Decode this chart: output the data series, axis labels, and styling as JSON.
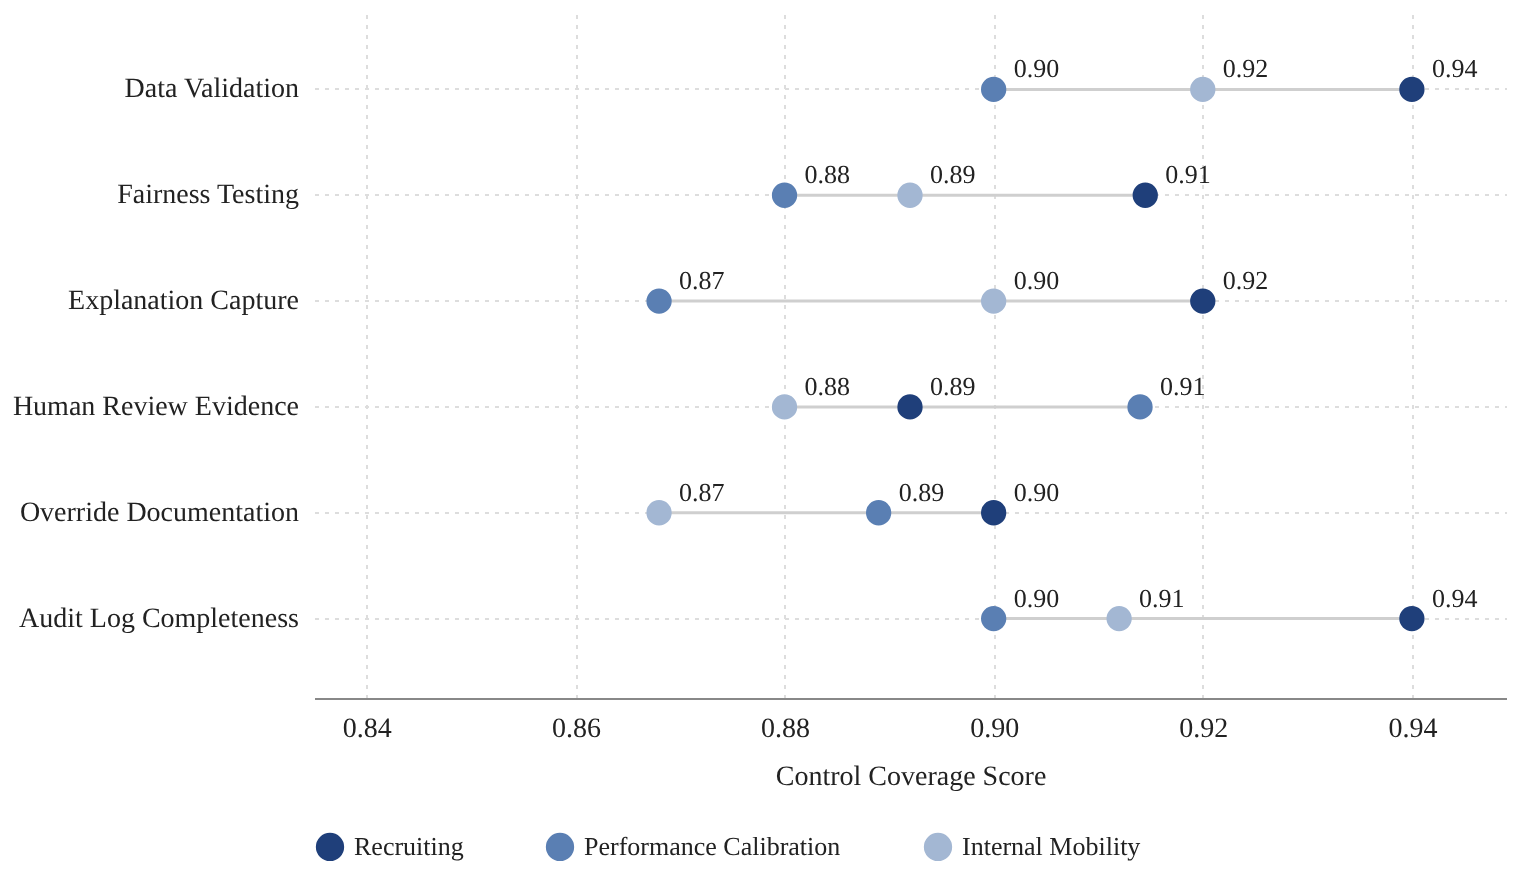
{
  "chart_data": {
    "type": "scatter",
    "orientation": "horizontal",
    "xlabel": "Control Coverage Score",
    "categories": [
      "Data Validation",
      "Fairness Testing",
      "Explanation Capture",
      "Human Review Evidence",
      "Override Documentation",
      "Audit Log Completeness"
    ],
    "series": [
      {
        "name": "Recruiting",
        "color": "#1f3f7a",
        "values": [
          0.94,
          0.9145,
          0.92,
          0.892,
          0.9,
          0.94
        ],
        "value_labels": [
          "0.94",
          "0.91",
          "0.92",
          "0.89",
          "0.90",
          "0.94"
        ]
      },
      {
        "name": "Performance Calibration",
        "color": "#5a7fb3",
        "values": [
          0.9,
          0.88,
          0.868,
          0.914,
          0.889,
          0.9
        ],
        "value_labels": [
          "0.90",
          "0.88",
          "0.87",
          "0.91",
          "0.89",
          "0.90"
        ]
      },
      {
        "name": "Internal Mobility",
        "color": "#a3b7d3",
        "values": [
          0.92,
          0.892,
          0.9,
          0.88,
          0.868,
          0.912
        ],
        "value_labels": [
          "0.92",
          "0.89",
          "0.90",
          "0.88",
          "0.87",
          "0.91"
        ]
      }
    ],
    "xlim": [
      0.835,
      0.949
    ],
    "xticks": [
      {
        "value": 0.84,
        "label": "0.84"
      },
      {
        "value": 0.86,
        "label": "0.86"
      },
      {
        "value": 0.88,
        "label": "0.88"
      },
      {
        "value": 0.9,
        "label": "0.90"
      },
      {
        "value": 0.92,
        "label": "0.92"
      },
      {
        "value": 0.94,
        "label": "0.94"
      }
    ],
    "grid": true,
    "legend": "bottom",
    "marker": "circle"
  }
}
